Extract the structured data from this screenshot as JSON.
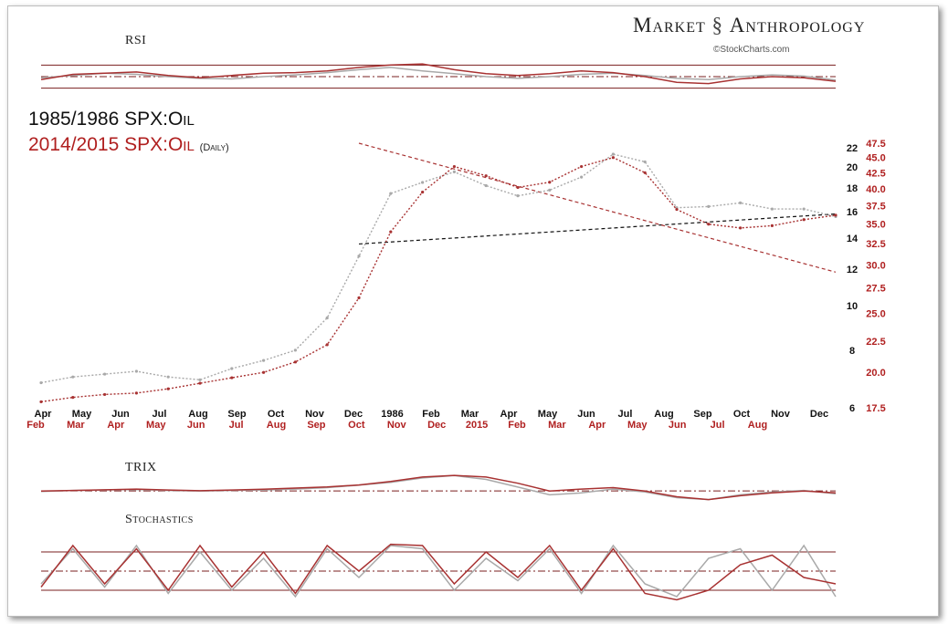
{
  "brand": {
    "left": "Market",
    "right": "Anthropology",
    "credit": "©StockCharts.com"
  },
  "titles": {
    "series_a": "1985/1986 SPX:Oil",
    "series_b": "2014/2015 SPX:Oil",
    "series_b_note": "(Daily)"
  },
  "panels": {
    "rsi": "RSI",
    "trix": "TRIX",
    "stochastics": "Stochastics"
  },
  "colors": {
    "series_a": "#a9a9a9",
    "series_b": "#a83232",
    "axis_b": "#b02020",
    "guide": "#7a1f1f"
  },
  "chart_data": {
    "type": "line",
    "x_labels_a": [
      "Apr",
      "May",
      "Jun",
      "Jul",
      "Aug",
      "Sep",
      "Oct",
      "Nov",
      "Dec",
      "1986",
      "Feb",
      "Mar",
      "Apr",
      "May",
      "Jun",
      "Jul",
      "Aug",
      "Sep",
      "Oct",
      "Nov",
      "Dec"
    ],
    "x_labels_b": [
      "Feb",
      "Mar",
      "Apr",
      "May",
      "Jun",
      "Jul",
      "Aug",
      "Sep",
      "Oct",
      "Nov",
      "Dec",
      "2015",
      "Feb",
      "Mar",
      "Apr",
      "May",
      "Jun",
      "Jul",
      "Aug"
    ],
    "y_axis_a": {
      "ticks": [
        6,
        8,
        10,
        12,
        14,
        16,
        18,
        20,
        22
      ],
      "scale": "log"
    },
    "y_axis_b": {
      "ticks": [
        17.5,
        20.0,
        22.5,
        25.0,
        27.5,
        30.0,
        32.5,
        35.0,
        37.5,
        40.0,
        42.5,
        45.0,
        47.5
      ],
      "scale": "log"
    },
    "series": [
      {
        "name": "1985/1986 SPX:Oil",
        "x": [
          0,
          10,
          20,
          30,
          40,
          50,
          60,
          70,
          80,
          90,
          100,
          110,
          120,
          130,
          140,
          150,
          160,
          170,
          180,
          190,
          200,
          210,
          220,
          230,
          240,
          250
        ],
        "y": [
          6.8,
          7.0,
          7.1,
          7.2,
          7.0,
          6.9,
          7.3,
          7.6,
          8.0,
          9.4,
          12.8,
          17.5,
          18.5,
          19.5,
          18.2,
          17.3,
          17.8,
          19.0,
          21.3,
          20.5,
          16.3,
          16.4,
          16.7,
          16.2,
          16.2,
          15.6
        ]
      },
      {
        "name": "2014/2015 SPX:Oil",
        "x": [
          0,
          10,
          20,
          30,
          40,
          50,
          60,
          70,
          80,
          90,
          100,
          110,
          120,
          130,
          140,
          150,
          160,
          170,
          180,
          190,
          200,
          210,
          220,
          230,
          240,
          250
        ],
        "y": [
          17.9,
          18.2,
          18.4,
          18.5,
          18.8,
          19.2,
          19.6,
          20.0,
          20.8,
          22.2,
          26.5,
          34.0,
          39.5,
          43.5,
          42.0,
          40.2,
          41.0,
          43.5,
          45.0,
          42.5,
          37.0,
          35.0,
          34.5,
          34.8,
          35.6,
          36.2
        ]
      }
    ],
    "trendlines": [
      {
        "series": "1985/1986 SPX:Oil",
        "style": "dashed",
        "from": {
          "x": 100,
          "y": 13.6
        },
        "to": {
          "x": 250,
          "y": 15.8
        }
      },
      {
        "series": "2014/2015 SPX:Oil",
        "style": "dashed",
        "from": {
          "x": 100,
          "y": 47.5
        },
        "to": {
          "x": 250,
          "y": 29.2
        }
      }
    ],
    "indicators": {
      "rsi": {
        "levels": [
          70,
          50,
          30
        ],
        "ylim": [
          20,
          80
        ],
        "series_a": [
          48,
          52,
          56,
          54,
          50,
          47,
          46,
          50,
          53,
          57,
          62,
          66,
          60,
          55,
          50,
          47,
          50,
          54,
          56,
          52,
          47,
          45,
          50,
          53,
          51,
          44
        ],
        "series_b": [
          45,
          54,
          56,
          58,
          52,
          48,
          52,
          56,
          57,
          60,
          66,
          70,
          72,
          62,
          55,
          52,
          55,
          60,
          57,
          50,
          40,
          38,
          46,
          50,
          48,
          42
        ]
      },
      "trix": {
        "levels": [
          0
        ],
        "ylim": [
          -1.6,
          2.2
        ],
        "series_a": [
          -0.05,
          0.05,
          0.1,
          0.15,
          0.05,
          0,
          0.05,
          0.1,
          0.2,
          0.35,
          0.6,
          0.9,
          1.35,
          1.6,
          1.2,
          0.4,
          -0.4,
          -0.2,
          0.2,
          -0.1,
          -0.7,
          -0.9,
          -0.4,
          -0.1,
          0.05,
          -0.3
        ],
        "series_b": [
          0,
          0.05,
          0.12,
          0.2,
          0.1,
          0.02,
          0.1,
          0.18,
          0.3,
          0.42,
          0.62,
          0.98,
          1.45,
          1.62,
          1.45,
          0.8,
          0.0,
          0.2,
          0.35,
          0.0,
          -0.6,
          -0.9,
          -0.5,
          -0.2,
          0.0,
          -0.2
        ]
      },
      "stochastics": {
        "levels": [
          80,
          50,
          20
        ],
        "ylim": [
          0,
          100
        ],
        "series_a": [
          30,
          85,
          25,
          90,
          15,
          80,
          20,
          70,
          10,
          85,
          40,
          90,
          85,
          20,
          70,
          35,
          85,
          15,
          90,
          30,
          10,
          70,
          85,
          20,
          90,
          10
        ],
        "series_b": [
          25,
          90,
          30,
          85,
          20,
          90,
          25,
          80,
          15,
          90,
          50,
          92,
          90,
          30,
          80,
          40,
          90,
          20,
          85,
          15,
          5,
          20,
          60,
          75,
          40,
          30
        ]
      }
    }
  }
}
